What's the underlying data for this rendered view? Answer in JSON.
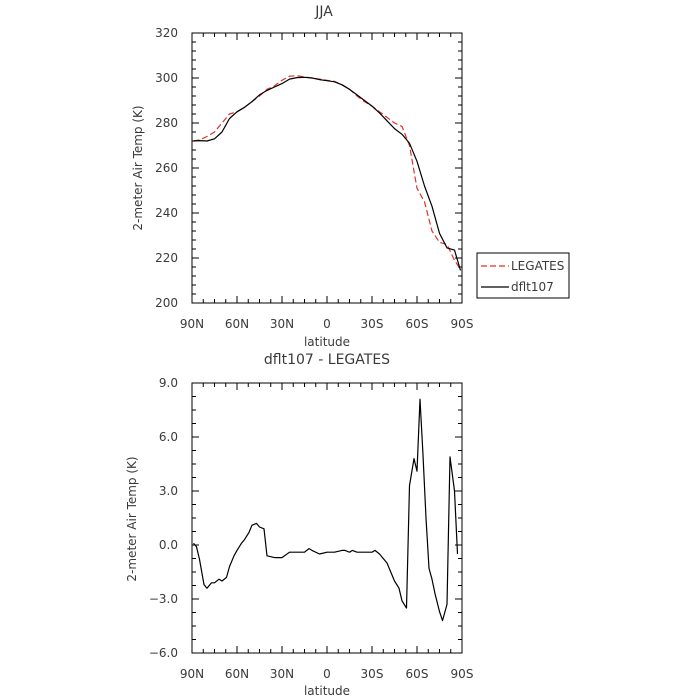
{
  "chart_data": [
    {
      "type": "line",
      "title": "JJA",
      "xlabel": "latitude",
      "ylabel": "2-meter Air Temp (K)",
      "x_ticks": [
        90,
        60,
        30,
        0,
        -30,
        -60,
        -90
      ],
      "x_tick_labels": [
        "90N",
        "60N",
        "30N",
        "0",
        "30S",
        "60S",
        "90S"
      ],
      "xlim": [
        90,
        -90
      ],
      "ylim": [
        200,
        320
      ],
      "y_ticks": [
        200,
        220,
        240,
        260,
        280,
        300,
        320
      ],
      "y_tick_labels": [
        "200",
        "220",
        "240",
        "260",
        "280",
        "300",
        "320"
      ],
      "legend": "right",
      "series": [
        {
          "name": "LEGATES",
          "color": "#e0302a",
          "dash": true,
          "x": [
            89,
            85,
            80,
            75,
            70,
            65,
            60,
            55,
            50,
            45,
            40,
            35,
            30,
            25,
            20,
            15,
            10,
            5,
            0,
            -5,
            -10,
            -15,
            -20,
            -25,
            -30,
            -35,
            -40,
            -45,
            -50,
            -55,
            -60,
            -65,
            -70,
            -75,
            -80,
            -85,
            -89
          ],
          "y": [
            272,
            272.5,
            274,
            276,
            280,
            284,
            285,
            287,
            289.5,
            292,
            295,
            296.5,
            299,
            300.8,
            301,
            300.5,
            300,
            299.5,
            299,
            298.5,
            297,
            295,
            292,
            289.5,
            287.5,
            285,
            282.5,
            280,
            278.5,
            270,
            251,
            245,
            232,
            227,
            226,
            219,
            215
          ]
        },
        {
          "name": "dflt107",
          "color": "#000000",
          "dash": false,
          "x": [
            89,
            85,
            80,
            75,
            70,
            65,
            60,
            55,
            50,
            45,
            40,
            35,
            30,
            25,
            20,
            15,
            10,
            5,
            0,
            -5,
            -10,
            -15,
            -20,
            -25,
            -30,
            -35,
            -40,
            -45,
            -50,
            -55,
            -60,
            -65,
            -70,
            -75,
            -80,
            -85,
            -89
          ],
          "y": [
            272,
            272.2,
            272,
            273,
            276,
            282,
            285,
            287,
            289.5,
            292.5,
            294.5,
            296,
            297.5,
            299.5,
            300.2,
            300.3,
            300,
            299.3,
            298.8,
            298.3,
            297,
            295,
            292.5,
            290,
            287.5,
            284.5,
            281,
            277.5,
            275,
            271,
            263,
            252,
            243,
            231,
            224.5,
            223.5,
            214.5
          ]
        }
      ]
    },
    {
      "type": "line",
      "title": "dflt107 - LEGATES",
      "xlabel": "latitude",
      "ylabel": "2-meter Air Temp (K)",
      "x_ticks": [
        90,
        60,
        30,
        0,
        -30,
        -60,
        -90
      ],
      "x_tick_labels": [
        "90N",
        "60N",
        "30N",
        "0",
        "30S",
        "60S",
        "90S"
      ],
      "xlim": [
        90,
        -90
      ],
      "ylim": [
        -6,
        9
      ],
      "y_ticks": [
        -6,
        -3,
        0,
        3,
        6,
        9
      ],
      "y_tick_labels": [
        "−6.0",
        "−3.0",
        "0.0",
        "3.0",
        "6.0",
        "9.0"
      ],
      "series": [
        {
          "color": "#000000",
          "x": [
            89,
            87,
            85,
            82,
            80,
            77,
            75,
            72,
            70,
            67,
            65,
            62,
            60,
            57,
            55,
            52,
            50,
            47,
            45,
            42,
            40,
            35,
            30,
            25,
            20,
            15,
            12,
            10,
            5,
            0,
            -5,
            -10,
            -12,
            -15,
            -17,
            -20,
            -25,
            -30,
            -32,
            -35,
            -40,
            -45,
            -48,
            -50,
            -53,
            -55,
            -58,
            -60,
            -62,
            -64,
            -66,
            -68,
            -70,
            -72,
            -75,
            -77,
            -80,
            -82,
            -85,
            -87
          ],
          "y": [
            0.1,
            -0.1,
            -0.8,
            -2.2,
            -2.4,
            -2.1,
            -2.1,
            -1.9,
            -2.0,
            -1.8,
            -1.2,
            -0.6,
            -0.3,
            0.1,
            0.3,
            0.7,
            1.1,
            1.2,
            1.0,
            0.9,
            -0.6,
            -0.7,
            -0.7,
            -0.4,
            -0.4,
            -0.4,
            -0.2,
            -0.3,
            -0.5,
            -0.4,
            -0.4,
            -0.3,
            -0.3,
            -0.4,
            -0.3,
            -0.4,
            -0.4,
            -0.4,
            -0.3,
            -0.5,
            -1.0,
            -2.0,
            -2.4,
            -3.1,
            -3.5,
            3.3,
            4.8,
            4.1,
            8.1,
            5.0,
            1.5,
            -1.3,
            -1.9,
            -2.7,
            -3.7,
            -4.2,
            -3.3,
            4.9,
            3.0,
            -0.5
          ]
        }
      ]
    }
  ]
}
